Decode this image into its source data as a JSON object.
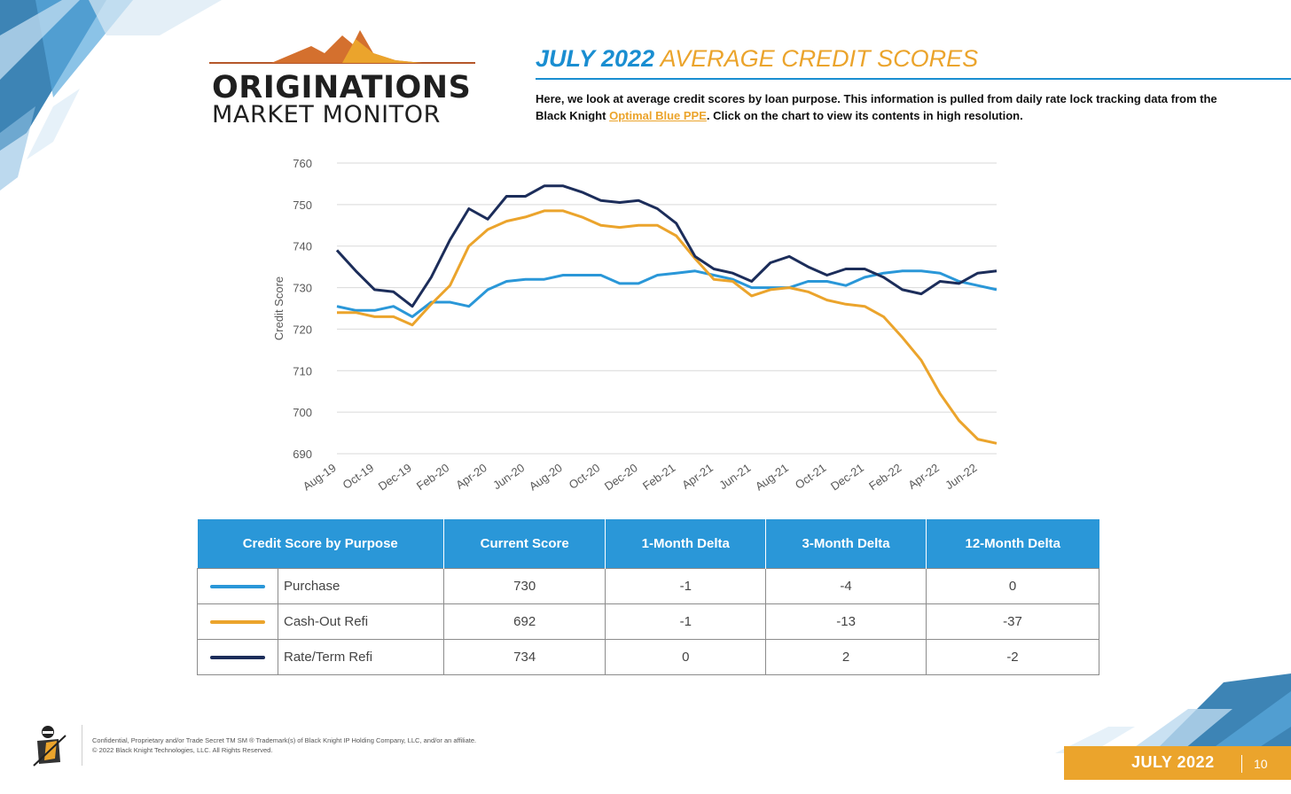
{
  "logo": {
    "line1": "ORIGINATIONS",
    "line2": "MARKET MONITOR"
  },
  "header": {
    "title_part1": "JULY 2022",
    "title_part2": "AVERAGE CREDIT SCORES",
    "desc_before": "Here, we look at average credit scores by loan purpose. This information is pulled from daily rate lock tracking data from the Black Knight ",
    "desc_link": "Optimal Blue PPE",
    "desc_after": ". Click on the chart to view its contents in high resolution."
  },
  "colors": {
    "purchase": "#2a97d8",
    "cashout": "#eba42c",
    "rateterm": "#1c2d5a",
    "accent_blue": "#1a8ed1",
    "accent_gold": "#eba42c"
  },
  "chart_data": {
    "type": "line",
    "ylabel": "Credit Score",
    "ylim": [
      690,
      760
    ],
    "yticks": [
      690,
      700,
      710,
      720,
      730,
      740,
      750,
      760
    ],
    "x_tick_labels": [
      "Aug-19",
      "Oct-19",
      "Dec-19",
      "Feb-20",
      "Apr-20",
      "Jun-20",
      "Aug-20",
      "Oct-20",
      "Dec-20",
      "Feb-21",
      "Apr-21",
      "Jun-21",
      "Aug-21",
      "Oct-21",
      "Dec-21",
      "Feb-22",
      "Apr-22",
      "Jun-22"
    ],
    "x": [
      "Aug-19",
      "Sep-19",
      "Oct-19",
      "Nov-19",
      "Dec-19",
      "Jan-20",
      "Feb-20",
      "Mar-20",
      "Apr-20",
      "May-20",
      "Jun-20",
      "Jul-20",
      "Aug-20",
      "Sep-20",
      "Oct-20",
      "Nov-20",
      "Dec-20",
      "Jan-21",
      "Feb-21",
      "Mar-21",
      "Apr-21",
      "May-21",
      "Jun-21",
      "Jul-21",
      "Aug-21",
      "Sep-21",
      "Oct-21",
      "Nov-21",
      "Dec-21",
      "Jan-22",
      "Feb-22",
      "Mar-22",
      "Apr-22",
      "May-22",
      "Jun-22",
      "Jul-22"
    ],
    "series": [
      {
        "name": "Purchase",
        "color": "#2a97d8",
        "values": [
          725.5,
          724.5,
          724.5,
          725.5,
          723,
          726.5,
          726.5,
          725.5,
          729.5,
          731.5,
          732,
          732,
          733,
          733,
          733,
          731,
          731,
          733,
          733.5,
          734,
          733,
          732,
          730,
          730,
          730,
          731.5,
          731.5,
          730.5,
          732.5,
          733.5,
          734,
          734,
          733.5,
          731.5,
          730.5,
          729.5
        ]
      },
      {
        "name": "Cash-Out Refi",
        "color": "#eba42c",
        "values": [
          724,
          724,
          723,
          723,
          721,
          726,
          730.5,
          740,
          744,
          746,
          747,
          748.5,
          748.5,
          747,
          745,
          744.5,
          745,
          745,
          742.5,
          737,
          732,
          731.5,
          728,
          729.5,
          730,
          729,
          727,
          726,
          725.5,
          723,
          718,
          712.5,
          704.5,
          698,
          693.5,
          692.5
        ]
      },
      {
        "name": "Rate/Term Refi",
        "color": "#1c2d5a",
        "values": [
          739,
          734,
          729.5,
          729,
          725.5,
          732.5,
          741.5,
          749,
          746.5,
          752,
          752,
          754.5,
          754.5,
          753,
          751,
          750.5,
          751,
          749,
          745.5,
          737.5,
          734.5,
          733.5,
          731.5,
          736,
          737.5,
          735,
          733,
          734.5,
          734.5,
          732.5,
          729.5,
          728.5,
          731.5,
          731,
          733.5,
          734
        ]
      }
    ]
  },
  "table": {
    "headers": [
      "Credit Score by Purpose",
      "Current Score",
      "1-Month Delta",
      "3-Month Delta",
      "12-Month Delta"
    ],
    "rows": [
      {
        "label": "Purchase",
        "current": "730",
        "m1": "-1",
        "m3": "-4",
        "m12": "0"
      },
      {
        "label": "Cash-Out Refi",
        "current": "692",
        "m1": "-1",
        "m3": "-13",
        "m12": "-37"
      },
      {
        "label": "Rate/Term Refi",
        "current": "734",
        "m1": "0",
        "m3": "2",
        "m12": "-2"
      }
    ]
  },
  "footer": {
    "line1": "Confidential, Proprietary and/or Trade Secret TM SM ® Trademark(s) of Black Knight IP Holding Company, LLC, and/or an affiliate.",
    "line2": "© 2022 Black Knight Technologies, LLC. All Rights Reserved.",
    "date": "JULY 2022",
    "page": "10"
  }
}
